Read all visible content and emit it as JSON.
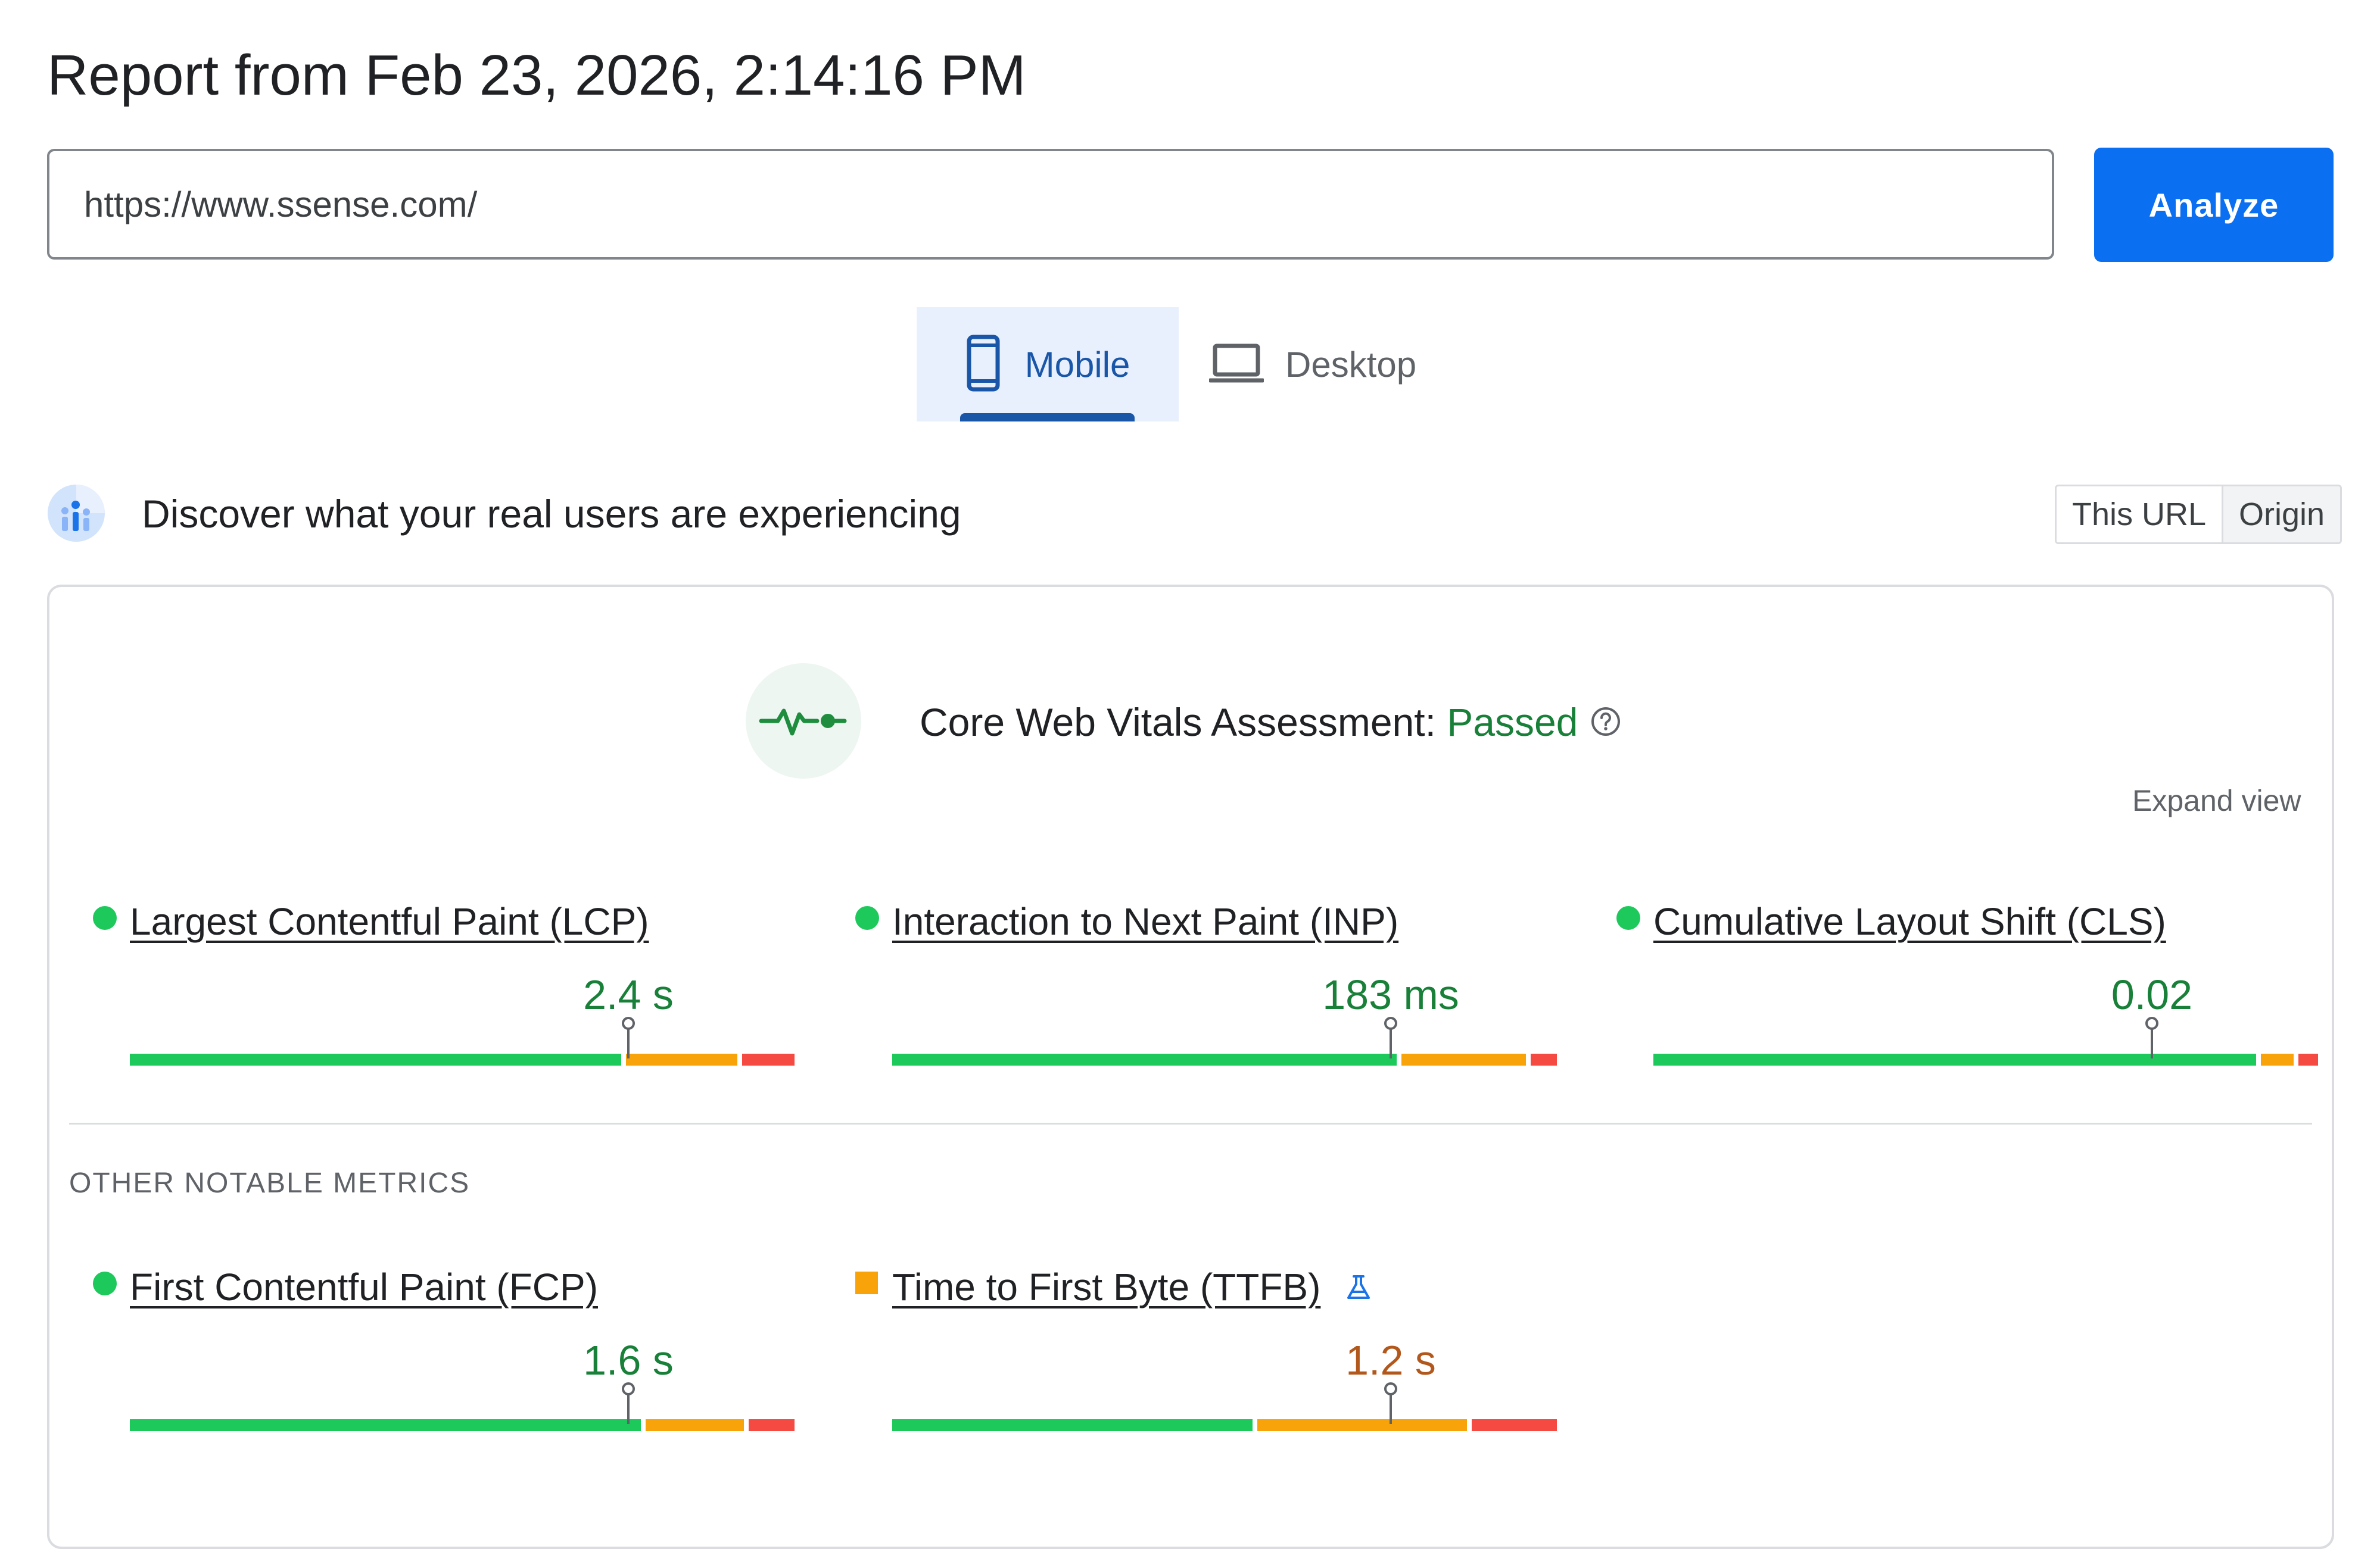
{
  "report": {
    "title": "Report from Feb 23, 2026, 2:14:16 PM"
  },
  "search": {
    "url_value": "https://www.ssense.com/",
    "analyze_label": "Analyze"
  },
  "device_tabs": [
    {
      "label": "Mobile",
      "icon": "smartphone-icon",
      "selected": true
    },
    {
      "label": "Desktop",
      "icon": "laptop-icon",
      "selected": false
    }
  ],
  "field_data": {
    "heading": "Discover what your real users are experiencing",
    "scope_options": [
      {
        "label": "This URL",
        "selected": false
      },
      {
        "label": "Origin",
        "selected": true
      }
    ]
  },
  "assessment": {
    "label": "Core Web Vitals Assessment:",
    "status": "Passed",
    "expand_label": "Expand view",
    "status_color": "#188038"
  },
  "colors": {
    "good": "#1ec95c",
    "needs_improvement": "#f9a30a",
    "poor": "#f44a42",
    "good_text": "#188038",
    "ni_text": "#b2581d"
  },
  "core_metrics": [
    {
      "name": "Largest Contentful Paint (LCP)",
      "value": "2.4 s",
      "rating": "good",
      "distribution": {
        "good": 0.75,
        "needs_improvement": 0.17,
        "poor": 0.08
      },
      "percentile_position": 0.75
    },
    {
      "name": "Interaction to Next Paint (INP)",
      "value": "183 ms",
      "rating": "good",
      "distribution": {
        "good": 0.77,
        "needs_improvement": 0.19,
        "poor": 0.04
      },
      "percentile_position": 0.75
    },
    {
      "name": "Cumulative Layout Shift (CLS)",
      "value": "0.02",
      "rating": "good",
      "distribution": {
        "good": 0.92,
        "needs_improvement": 0.05,
        "poor": 0.03
      },
      "percentile_position": 0.75
    }
  ],
  "other_metrics": {
    "heading": "OTHER NOTABLE METRICS",
    "items": [
      {
        "name": "First Contentful Paint (FCP)",
        "value": "1.6 s",
        "rating": "good",
        "distribution": {
          "good": 0.78,
          "needs_improvement": 0.15,
          "poor": 0.07
        },
        "percentile_position": 0.75
      },
      {
        "name": "Time to First Byte (TTFB)",
        "value": "1.2 s",
        "rating": "needs_improvement",
        "experimental": true,
        "distribution": {
          "good": 0.55,
          "needs_improvement": 0.32,
          "poor": 0.13
        },
        "percentile_position": 0.75
      }
    ]
  }
}
